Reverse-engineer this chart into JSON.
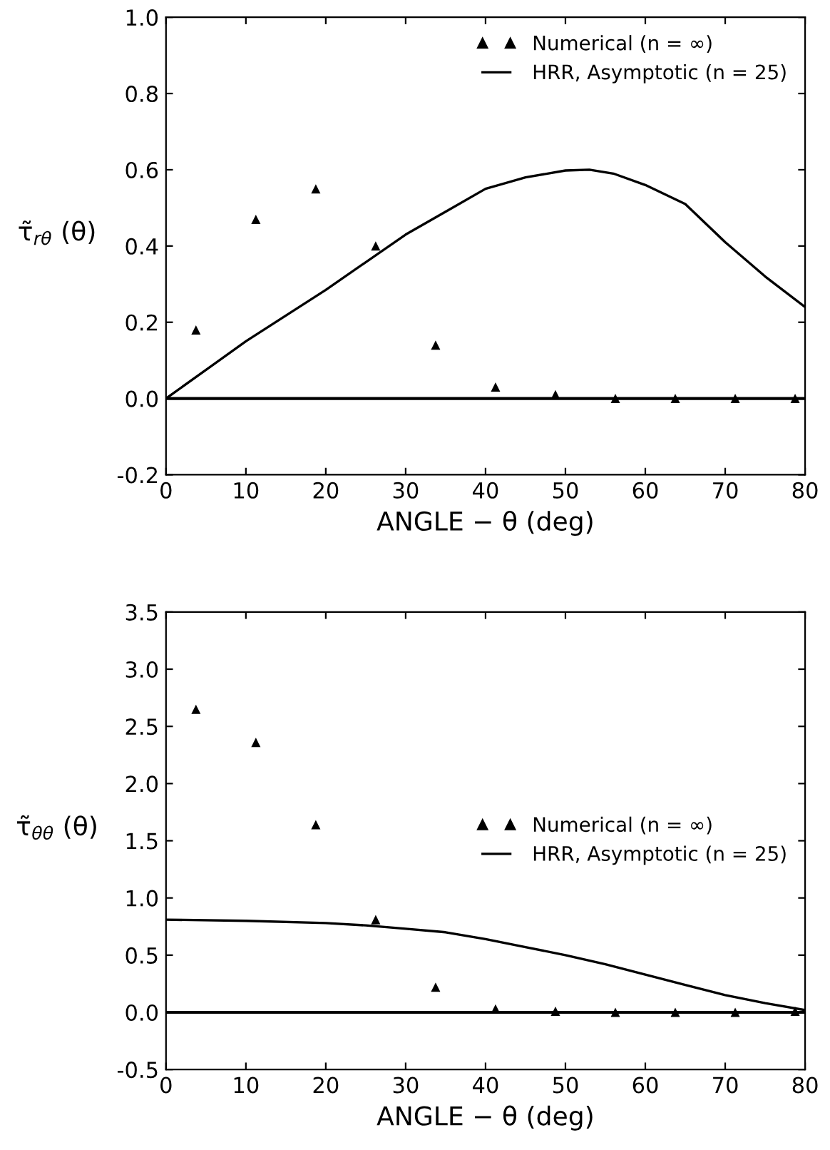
{
  "chart_data": [
    {
      "type": "scatter",
      "xlabel": "ANGLE − θ (deg)",
      "ylabel": "τ̃$_{rθ}$ (θ)",
      "xlim": [
        0,
        80
      ],
      "xticks": [
        0,
        10,
        20,
        30,
        40,
        50,
        60,
        70,
        80
      ],
      "ylim": [
        -0.2,
        1.0
      ],
      "yticks": [
        -0.2,
        {
          "value": 0,
          "label": "0.0"
        },
        0.2,
        0.4,
        0.6,
        0.8,
        {
          "value": 1,
          "label": "1.0"
        }
      ],
      "legend": "top right",
      "grid": false,
      "ref_lines": [
        {
          "axis": "y",
          "value": 0
        }
      ],
      "series": [
        {
          "name": "Numerical (n = ∞)",
          "marker": "triangle",
          "color": "#000000",
          "x": [
            3.75,
            11.25,
            18.75,
            26.25,
            33.75,
            41.25,
            48.75,
            56.25,
            63.75,
            71.25,
            78.75
          ],
          "values": [
            0.18,
            0.47,
            0.55,
            0.4,
            0.14,
            0.03,
            0.01,
            0,
            0,
            0,
            0
          ]
        },
        {
          "name": "HRR, Asymptotic (n = 25)",
          "type": "line",
          "marker": "none",
          "line_style": "solid",
          "color": "#000000",
          "x": [
            0,
            10,
            20,
            30,
            35,
            40,
            45,
            50,
            53,
            56,
            60,
            65,
            70,
            75,
            80
          ],
          "values": [
            0,
            0.15,
            0.285,
            0.43,
            0.49,
            0.55,
            0.58,
            0.598,
            0.6,
            0.59,
            0.56,
            0.51,
            0.41,
            0.32,
            0.24
          ]
        }
      ]
    },
    {
      "type": "scatter",
      "xlabel": "ANGLE − θ (deg)",
      "ylabel": "τ̃$_{θθ}$ (θ)",
      "xlim": [
        0,
        80
      ],
      "xticks": [
        0,
        10,
        20,
        30,
        40,
        50,
        60,
        70,
        80
      ],
      "ylim": [
        -0.5,
        3.5
      ],
      "yticks": [
        -0.5,
        {
          "value": 0,
          "label": "0.0"
        },
        0.5,
        {
          "value": 1,
          "label": "1.0"
        },
        1.5,
        {
          "value": 2,
          "label": "2.0"
        },
        2.5,
        {
          "value": 3,
          "label": "3.0"
        },
        3.5
      ],
      "legend": "center right",
      "grid": false,
      "ref_lines": [
        {
          "axis": "y",
          "value": 0
        }
      ],
      "series": [
        {
          "name": "Numerical (n = ∞)",
          "marker": "triangle",
          "color": "#000000",
          "x": [
            3.75,
            11.25,
            18.75,
            26.25,
            33.75,
            41.25,
            48.75,
            56.25,
            63.75,
            71.25,
            78.75
          ],
          "values": [
            2.65,
            2.36,
            1.64,
            0.81,
            0.22,
            0.03,
            0.01,
            0,
            0,
            0,
            0.01
          ]
        },
        {
          "name": "HRR, Asymptotic (n = 25)",
          "type": "line",
          "marker": "none",
          "line_style": "solid",
          "color": "#000000",
          "x": [
            0,
            10,
            20,
            25,
            30,
            35,
            40,
            45,
            50,
            55,
            60,
            65,
            70,
            75,
            80
          ],
          "values": [
            0.81,
            0.8,
            0.78,
            0.76,
            0.73,
            0.7,
            0.64,
            0.57,
            0.5,
            0.42,
            0.33,
            0.24,
            0.15,
            0.08,
            0.02
          ]
        }
      ]
    }
  ]
}
